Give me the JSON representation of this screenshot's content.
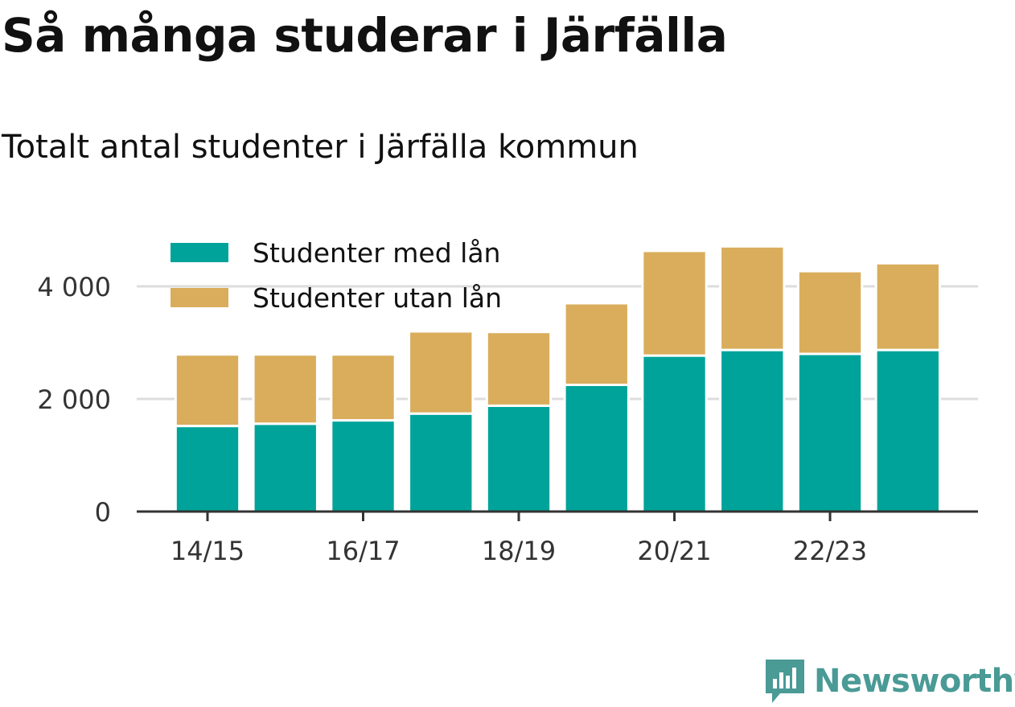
{
  "title": "Så många studerar i Järfälla",
  "subtitle": "Totalt antal studenter i Järfälla kommun",
  "brand": {
    "name": "Newsworthy",
    "icon": "newsworthy-logo-icon",
    "color": "#4a9a96"
  },
  "chart_data": {
    "type": "bar",
    "stacked": true,
    "categories": [
      "14/15",
      "15/16",
      "16/17",
      "17/18",
      "18/19",
      "19/20",
      "20/21",
      "21/22",
      "22/23",
      "23/24"
    ],
    "x_tick_labels": [
      "14/15",
      "16/17",
      "18/19",
      "20/21",
      "22/23"
    ],
    "series": [
      {
        "name": "Studenter med lån",
        "color": "#00a39a",
        "values": [
          1520,
          1560,
          1620,
          1740,
          1880,
          2250,
          2770,
          2870,
          2800,
          2870
        ]
      },
      {
        "name": "Studenter utan lån",
        "color": "#d9ad5b",
        "values": [
          1270,
          1230,
          1170,
          1460,
          1310,
          1450,
          1860,
          1840,
          1470,
          1540
        ]
      }
    ],
    "y_ticks": [
      0,
      2000,
      4000
    ],
    "y_tick_labels": [
      "0",
      "2 000",
      "4 000"
    ],
    "ylim": [
      0,
      5000
    ],
    "grid": true,
    "legend_position": "top-left"
  }
}
